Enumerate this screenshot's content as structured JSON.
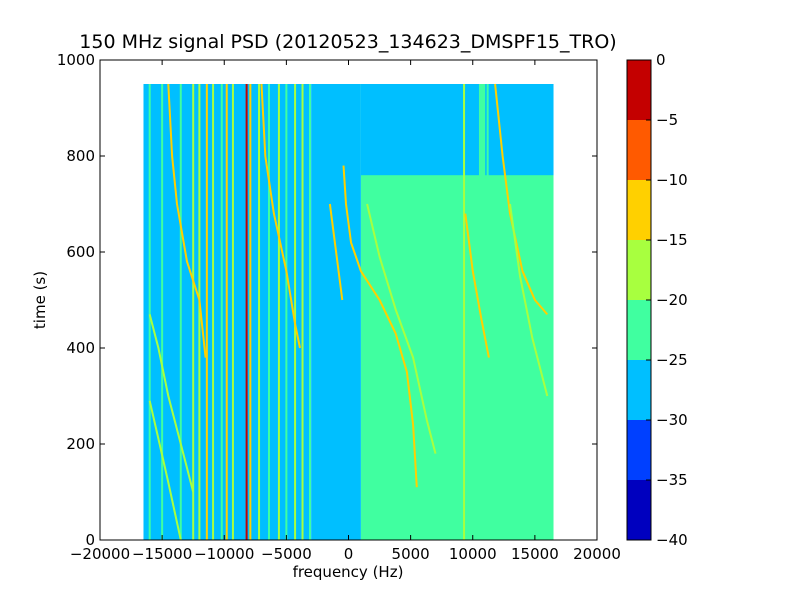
{
  "chart_data": {
    "type": "heatmap",
    "title": "150 MHz signal PSD (20120523_134623_DMSPF15_TRO)",
    "xlabel": "frequency (Hz)",
    "ylabel": "time (s)",
    "xlim": [
      -20000,
      20000
    ],
    "ylim": [
      0,
      1000
    ],
    "x_ticks": [
      -20000,
      -15000,
      -10000,
      -5000,
      0,
      5000,
      10000,
      15000,
      20000
    ],
    "x_tick_labels": [
      "−20000",
      "−15000",
      "−10000",
      "−5000",
      "0",
      "5000",
      "10000",
      "15000",
      "20000"
    ],
    "y_ticks": [
      0,
      200,
      400,
      600,
      800,
      1000
    ],
    "y_tick_labels": [
      "0",
      "200",
      "400",
      "600",
      "800",
      "1000"
    ],
    "data_extent": {
      "x": [
        -16500,
        16500
      ],
      "y": [
        0,
        950
      ]
    },
    "colorbar": {
      "levels": [
        -40,
        -35,
        -30,
        -25,
        -20,
        -15,
        -10,
        -5,
        0
      ],
      "tick_labels": [
        "−40",
        "−35",
        "−30",
        "−25",
        "−20",
        "−15",
        "−10",
        "−5",
        "0"
      ],
      "colors": [
        "#0000bf",
        "#0040ff",
        "#00bfff",
        "#40ffa0",
        "#a8ff3f",
        "#ffd000",
        "#ff5a00",
        "#c40000"
      ]
    },
    "background_regions": [
      {
        "x": [
          -16500,
          -3000
        ],
        "y": [
          0,
          950
        ],
        "level": -27.5
      },
      {
        "x": [
          -3000,
          1000
        ],
        "y": [
          0,
          950
        ],
        "level": -27.5
      },
      {
        "x": [
          1000,
          16500
        ],
        "y": [
          0,
          950
        ],
        "level": -22.5
      },
      {
        "x": [
          1000,
          10500
        ],
        "y": [
          760,
          950
        ],
        "level": -27.5
      },
      {
        "x": [
          11000,
          16500
        ],
        "y": [
          760,
          950
        ],
        "level": -27.5
      }
    ],
    "vertical_lines": [
      {
        "x": -16000,
        "level": -22.5
      },
      {
        "x": -15000,
        "level": -22.5
      },
      {
        "x": -13500,
        "level": -22.5
      },
      {
        "x": -12500,
        "level": -17.5
      },
      {
        "x": -12000,
        "level": -17.5
      },
      {
        "x": -11400,
        "level": -12.5
      },
      {
        "x": -10900,
        "level": -17.5
      },
      {
        "x": -10200,
        "level": -22.5
      },
      {
        "x": -9800,
        "level": -12.5
      },
      {
        "x": -9300,
        "level": -17.5
      },
      {
        "x": -8200,
        "level": -2.5
      },
      {
        "x": -7900,
        "level": -12.5
      },
      {
        "x": -7200,
        "level": -17.5
      },
      {
        "x": -6400,
        "level": -22.5
      },
      {
        "x": -5600,
        "level": -17.5
      },
      {
        "x": -5000,
        "level": -22.5
      },
      {
        "x": -4300,
        "level": -17.5
      },
      {
        "x": -3700,
        "level": -17.5
      },
      {
        "x": -3100,
        "level": -22.5
      },
      {
        "x": 9300,
        "level": -17.5
      },
      {
        "x": 11200,
        "level": -22.5
      }
    ],
    "doppler_tracks": [
      {
        "name": "track-1",
        "level": -12.5,
        "points": [
          [
            -14500,
            950
          ],
          [
            -14200,
            800
          ],
          [
            -13800,
            700
          ],
          [
            -13000,
            580
          ],
          [
            -12000,
            500
          ],
          [
            -11500,
            380
          ]
        ]
      },
      {
        "name": "track-2",
        "level": -17.5,
        "points": [
          [
            -16000,
            470
          ],
          [
            -15300,
            400
          ],
          [
            -14500,
            300
          ],
          [
            -13500,
            200
          ],
          [
            -12500,
            100
          ]
        ]
      },
      {
        "name": "track-3",
        "level": -17.5,
        "points": [
          [
            -16000,
            290
          ],
          [
            -15200,
            200
          ],
          [
            -14500,
            120
          ],
          [
            -13500,
            0
          ]
        ]
      },
      {
        "name": "track-4",
        "level": -12.5,
        "points": [
          [
            -7000,
            950
          ],
          [
            -6700,
            800
          ],
          [
            -6000,
            680
          ],
          [
            -5000,
            560
          ],
          [
            -4300,
            450
          ],
          [
            -3900,
            400
          ]
        ]
      },
      {
        "name": "track-5",
        "level": -12.5,
        "points": [
          [
            -1500,
            700
          ],
          [
            -1000,
            600
          ],
          [
            -500,
            500
          ]
        ]
      },
      {
        "name": "track-6",
        "level": -12.5,
        "points": [
          [
            -400,
            780
          ],
          [
            -200,
            700
          ],
          [
            200,
            620
          ],
          [
            1000,
            560
          ],
          [
            2500,
            500
          ],
          [
            3800,
            430
          ],
          [
            4700,
            350
          ],
          [
            5200,
            240
          ],
          [
            5500,
            110
          ]
        ]
      },
      {
        "name": "track-7",
        "level": -17.5,
        "points": [
          [
            1500,
            700
          ],
          [
            2500,
            590
          ],
          [
            3800,
            480
          ],
          [
            5200,
            380
          ],
          [
            6300,
            250
          ],
          [
            7000,
            180
          ]
        ]
      },
      {
        "name": "track-8",
        "level": -12.5,
        "points": [
          [
            9400,
            680
          ],
          [
            10000,
            560
          ],
          [
            10700,
            460
          ],
          [
            11300,
            380
          ]
        ]
      },
      {
        "name": "track-9",
        "level": -12.5,
        "points": [
          [
            11800,
            950
          ],
          [
            12400,
            800
          ],
          [
            13000,
            680
          ],
          [
            14000,
            560
          ],
          [
            15000,
            500
          ],
          [
            16000,
            470
          ]
        ]
      },
      {
        "name": "track-10",
        "level": -17.5,
        "points": [
          [
            13000,
            700
          ],
          [
            13800,
            550
          ],
          [
            14800,
            420
          ],
          [
            16000,
            300
          ]
        ]
      }
    ]
  }
}
